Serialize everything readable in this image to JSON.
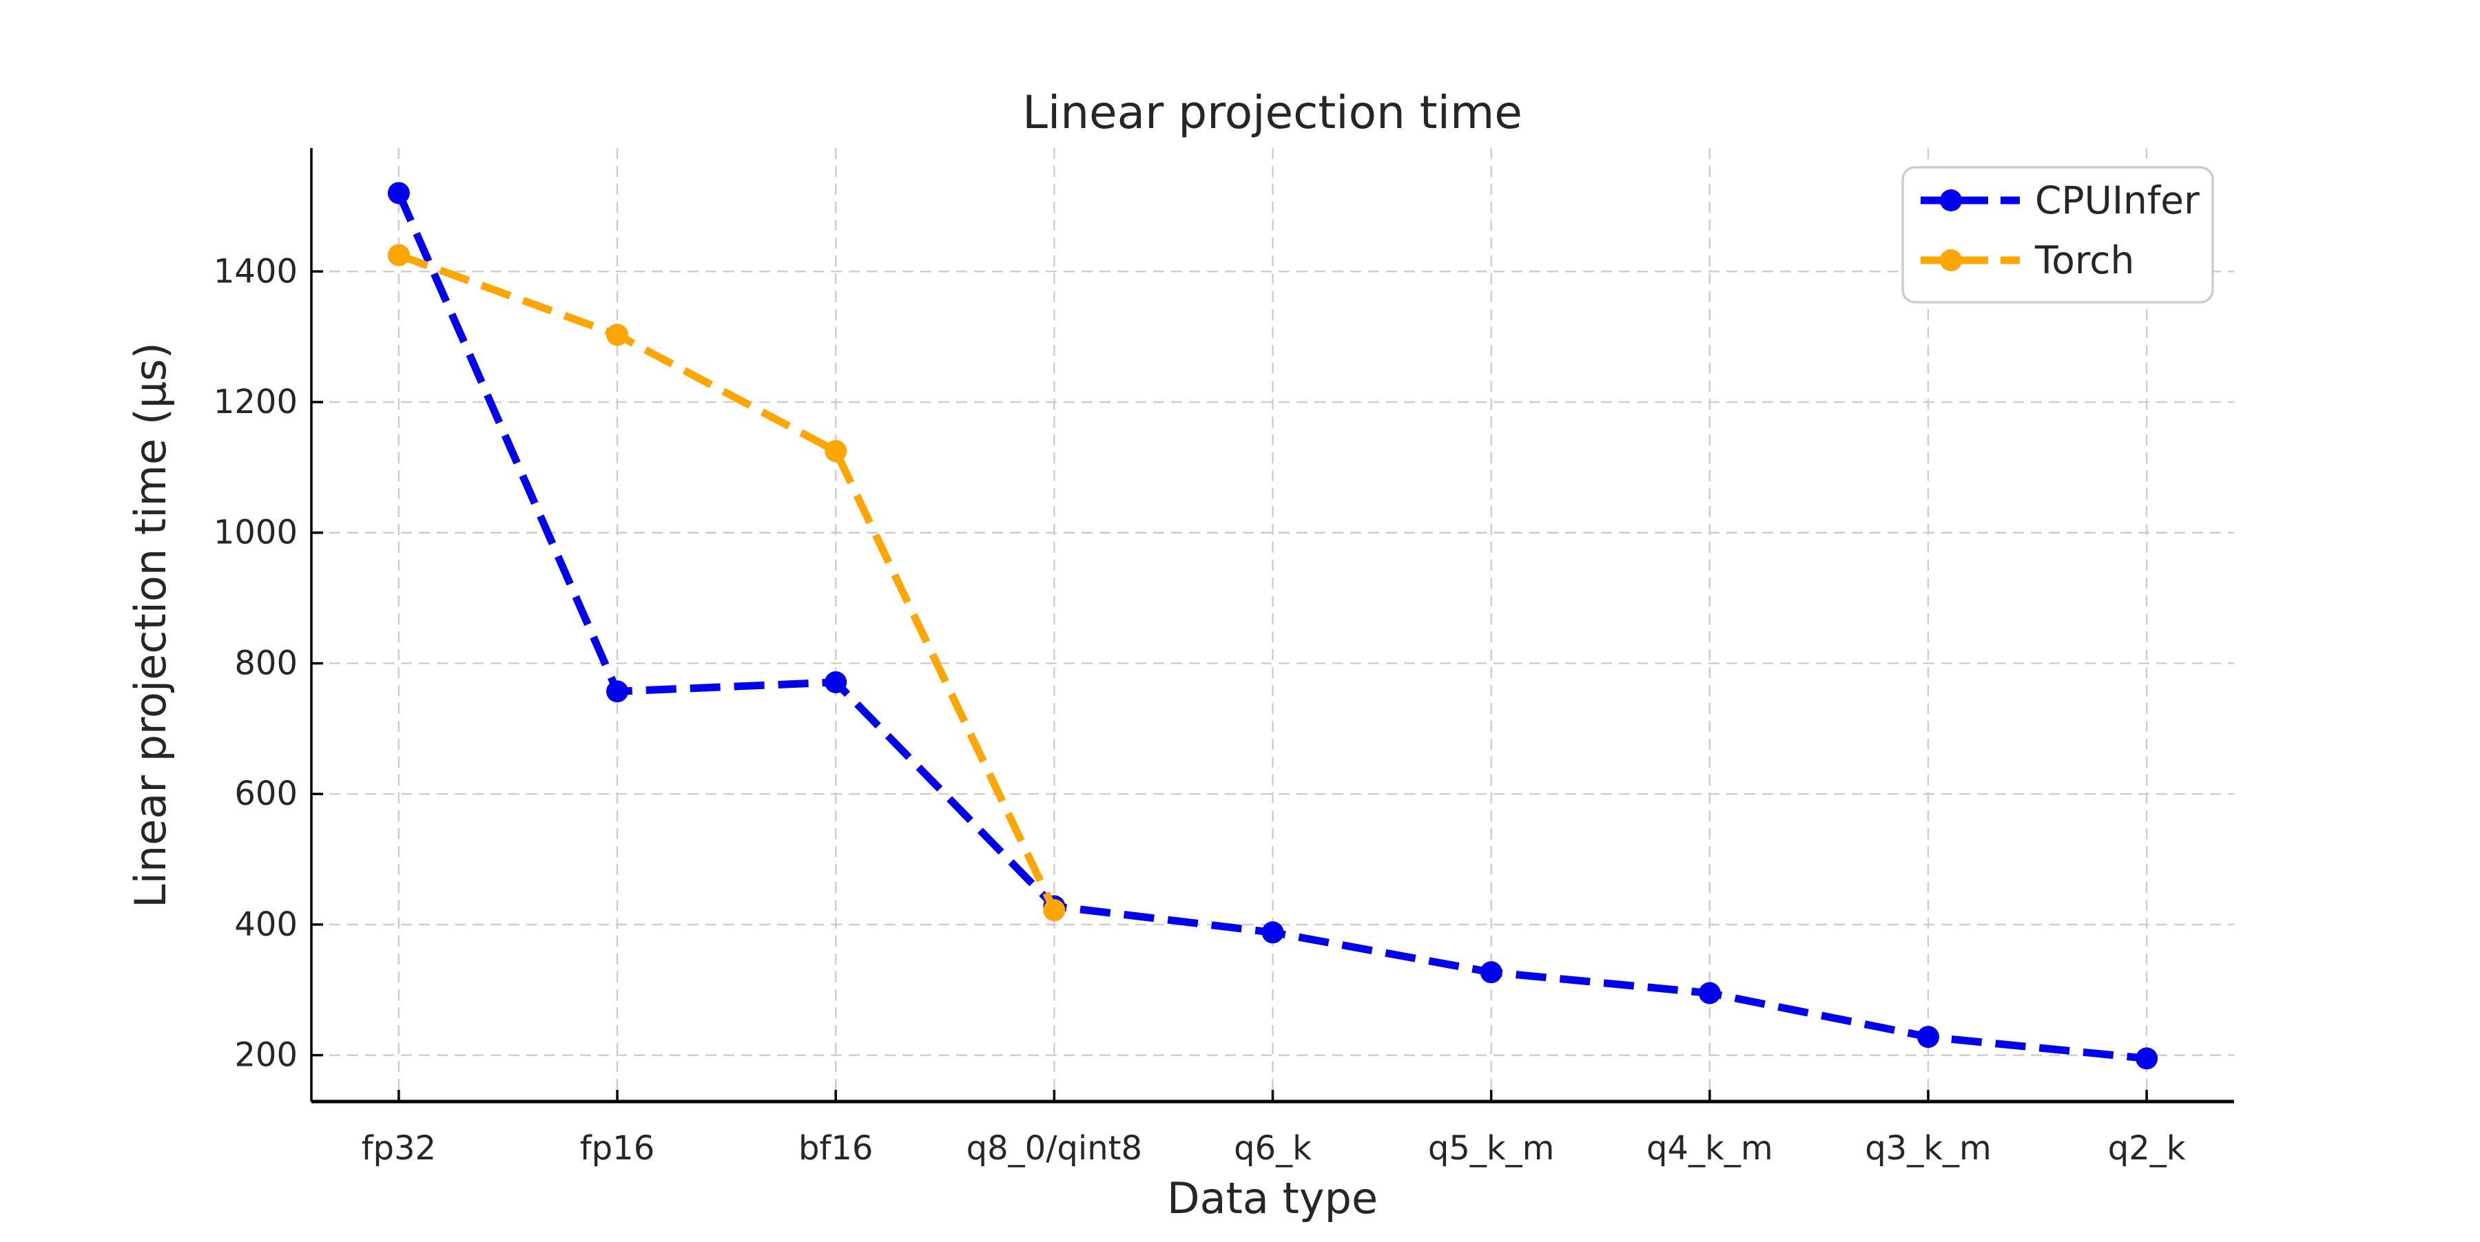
{
  "figure": {
    "background": "#ffffff"
  },
  "chart_data": {
    "type": "line",
    "title": "Linear projection time",
    "xlabel": "Data type",
    "ylabel": "Linear projection time (μs)",
    "categories": [
      "fp32",
      "fp16",
      "bf16",
      "q8_0/qint8",
      "q6_k",
      "q5_k_m",
      "q4_k_m",
      "q3_k_m",
      "q2_k"
    ],
    "series": [
      {
        "name": "CPUInfer",
        "color": "#0000ee",
        "linestyle": "dashed",
        "marker": "circle",
        "values": [
          1520,
          757,
          771,
          428,
          388,
          327,
          295,
          228,
          195
        ]
      },
      {
        "name": "Torch",
        "color": "#ffa500",
        "linestyle": "dashed",
        "marker": "circle",
        "values": [
          1425,
          1303,
          1125,
          422,
          null,
          null,
          null,
          null,
          null
        ]
      }
    ],
    "yticks": [
      200,
      400,
      600,
      800,
      1000,
      1200,
      1400
    ],
    "ylim": [
      129,
      1589
    ],
    "grid": true,
    "grid_color": "#cccccc",
    "spine_color": "#000000",
    "text_color": "#262626",
    "legend_position": "upper right",
    "legend_border_color": "#cccccc"
  }
}
